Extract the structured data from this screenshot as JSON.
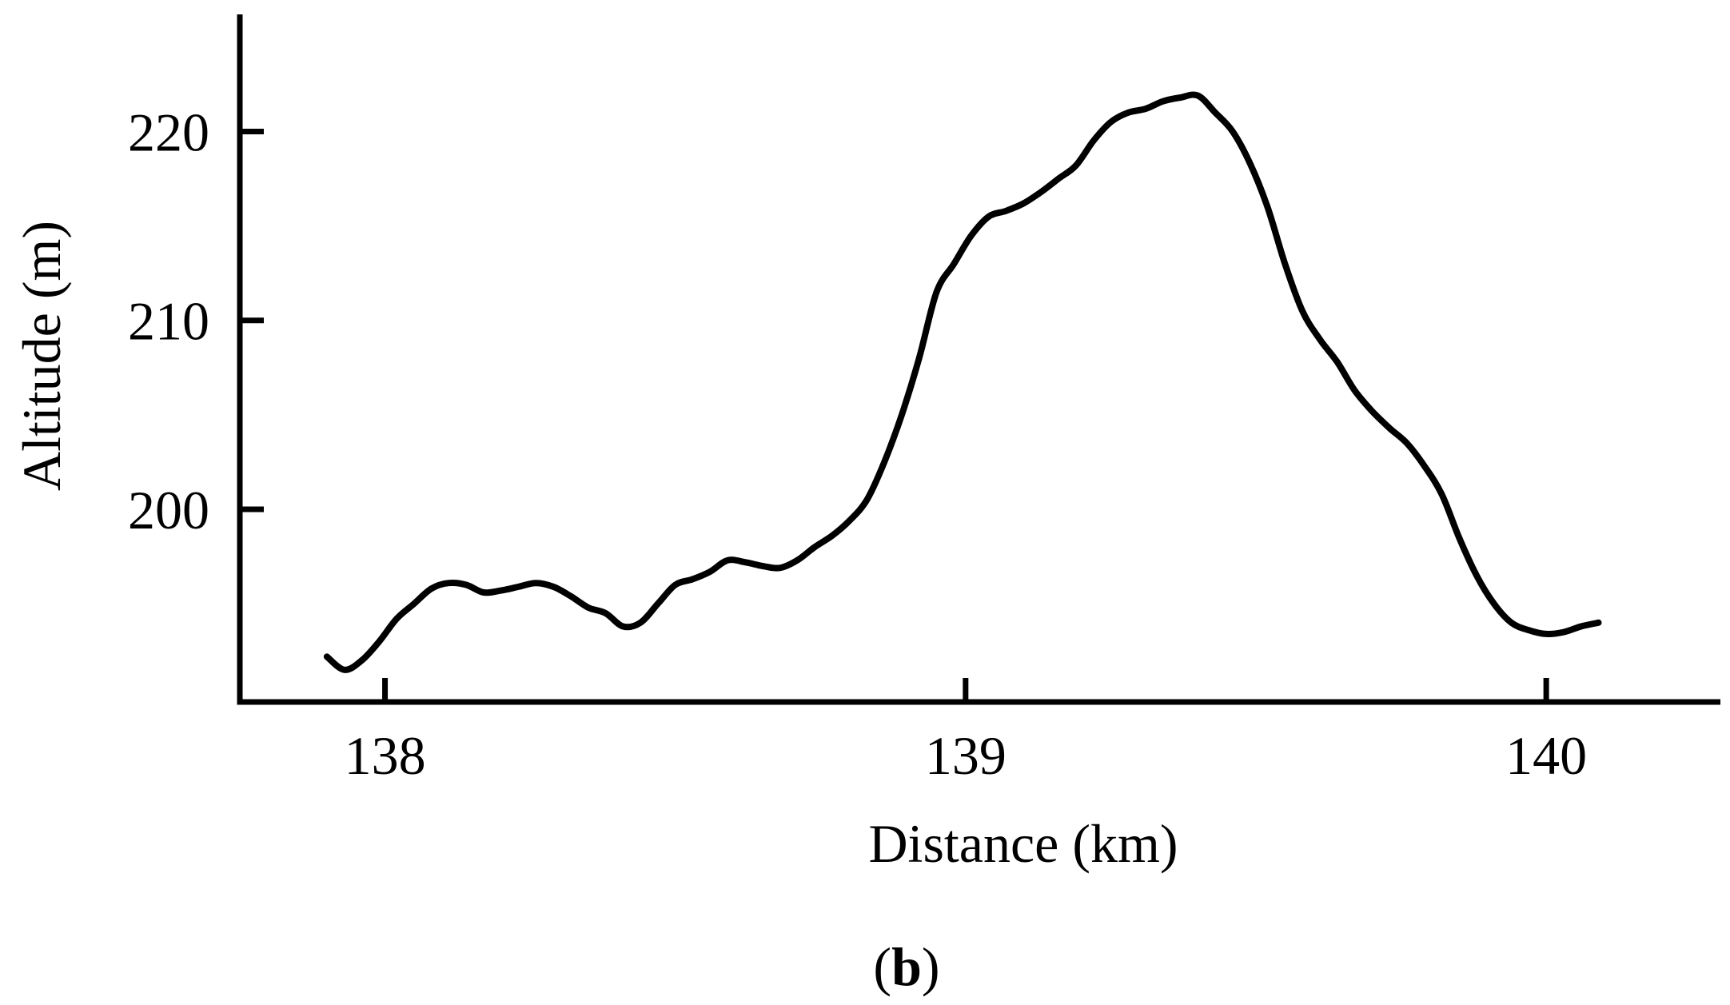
{
  "chart_data": {
    "type": "line",
    "title": "",
    "xlabel": "Distance (km)",
    "ylabel": "Altitude (m)",
    "xlim": [
      137.75,
      140.3
    ],
    "ylim": [
      189.8,
      226.2
    ],
    "xticks": [
      138,
      139,
      140
    ],
    "yticks": [
      200,
      210,
      220
    ],
    "xtick_labels": [
      "138",
      "139",
      "140"
    ],
    "ytick_labels": [
      "200",
      "210",
      "220"
    ],
    "grid": false,
    "legend": "none",
    "line_color": "#000000",
    "series": [
      {
        "x": [
          137.9,
          137.93,
          137.96,
          137.99,
          138.02,
          138.05,
          138.08,
          138.11,
          138.14,
          138.17,
          138.2,
          138.23,
          138.26,
          138.29,
          138.32,
          138.35,
          138.38,
          138.41,
          138.44,
          138.47,
          138.5,
          138.53,
          138.56,
          138.59,
          138.62,
          138.65,
          138.68,
          138.71,
          138.74,
          138.77,
          138.8,
          138.83,
          138.86,
          138.89,
          138.92,
          138.95,
          138.98,
          139.01,
          139.04,
          139.07,
          139.1,
          139.13,
          139.16,
          139.19,
          139.22,
          139.25,
          139.28,
          139.31,
          139.34,
          139.37,
          139.4,
          139.43,
          139.46,
          139.49,
          139.52,
          139.55,
          139.58,
          139.61,
          139.64,
          139.67,
          139.7,
          139.73,
          139.76,
          139.79,
          139.82,
          139.85,
          139.88,
          139.91,
          139.94,
          139.97,
          140.0,
          140.03,
          140.06,
          140.09
        ],
        "y": [
          192.2,
          191.5,
          192.0,
          193.0,
          194.2,
          195.0,
          195.8,
          196.1,
          196.0,
          195.6,
          195.7,
          195.9,
          196.1,
          195.9,
          195.4,
          194.8,
          194.5,
          193.8,
          194.0,
          195.0,
          196.0,
          196.3,
          196.7,
          197.3,
          197.2,
          197.0,
          196.9,
          197.3,
          198.0,
          198.6,
          199.4,
          200.5,
          202.5,
          205.0,
          208.0,
          211.5,
          213.0,
          214.5,
          215.5,
          215.8,
          216.2,
          216.8,
          217.5,
          218.2,
          219.5,
          220.5,
          221.0,
          221.2,
          221.6,
          221.8,
          221.9,
          221.0,
          220.0,
          218.3,
          216.0,
          213.0,
          210.5,
          209.0,
          207.8,
          206.3,
          205.2,
          204.3,
          203.5,
          202.3,
          200.8,
          198.5,
          196.5,
          195.0,
          194.0,
          193.6,
          193.4,
          193.5,
          193.8,
          194.0
        ]
      }
    ]
  },
  "panel": {
    "open": "(",
    "letter": "b",
    "close": ")"
  }
}
